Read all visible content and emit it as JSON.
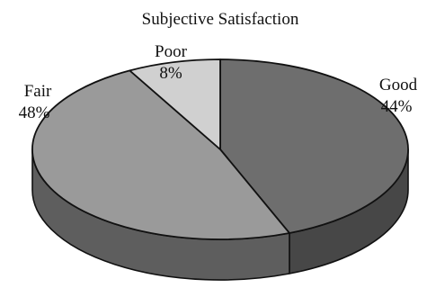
{
  "chart_data": {
    "type": "pie",
    "style": "3d",
    "title": "Subjective Satisfaction",
    "slices": [
      {
        "label": "Good",
        "value": 44,
        "value_label": "44%",
        "top_color": "#6e6e6e",
        "side_color": "#474747"
      },
      {
        "label": "Fair",
        "value": 48,
        "value_label": "48%",
        "top_color": "#9a9a9a",
        "side_color": "#5e5e5e"
      },
      {
        "label": "Poor",
        "value": 8,
        "value_label": "8%",
        "top_color": "#d0d0d0",
        "side_color": "#8a8a8a"
      }
    ],
    "start_angle_deg": -90,
    "direction": "clockwise",
    "outline_color": "#111111"
  }
}
